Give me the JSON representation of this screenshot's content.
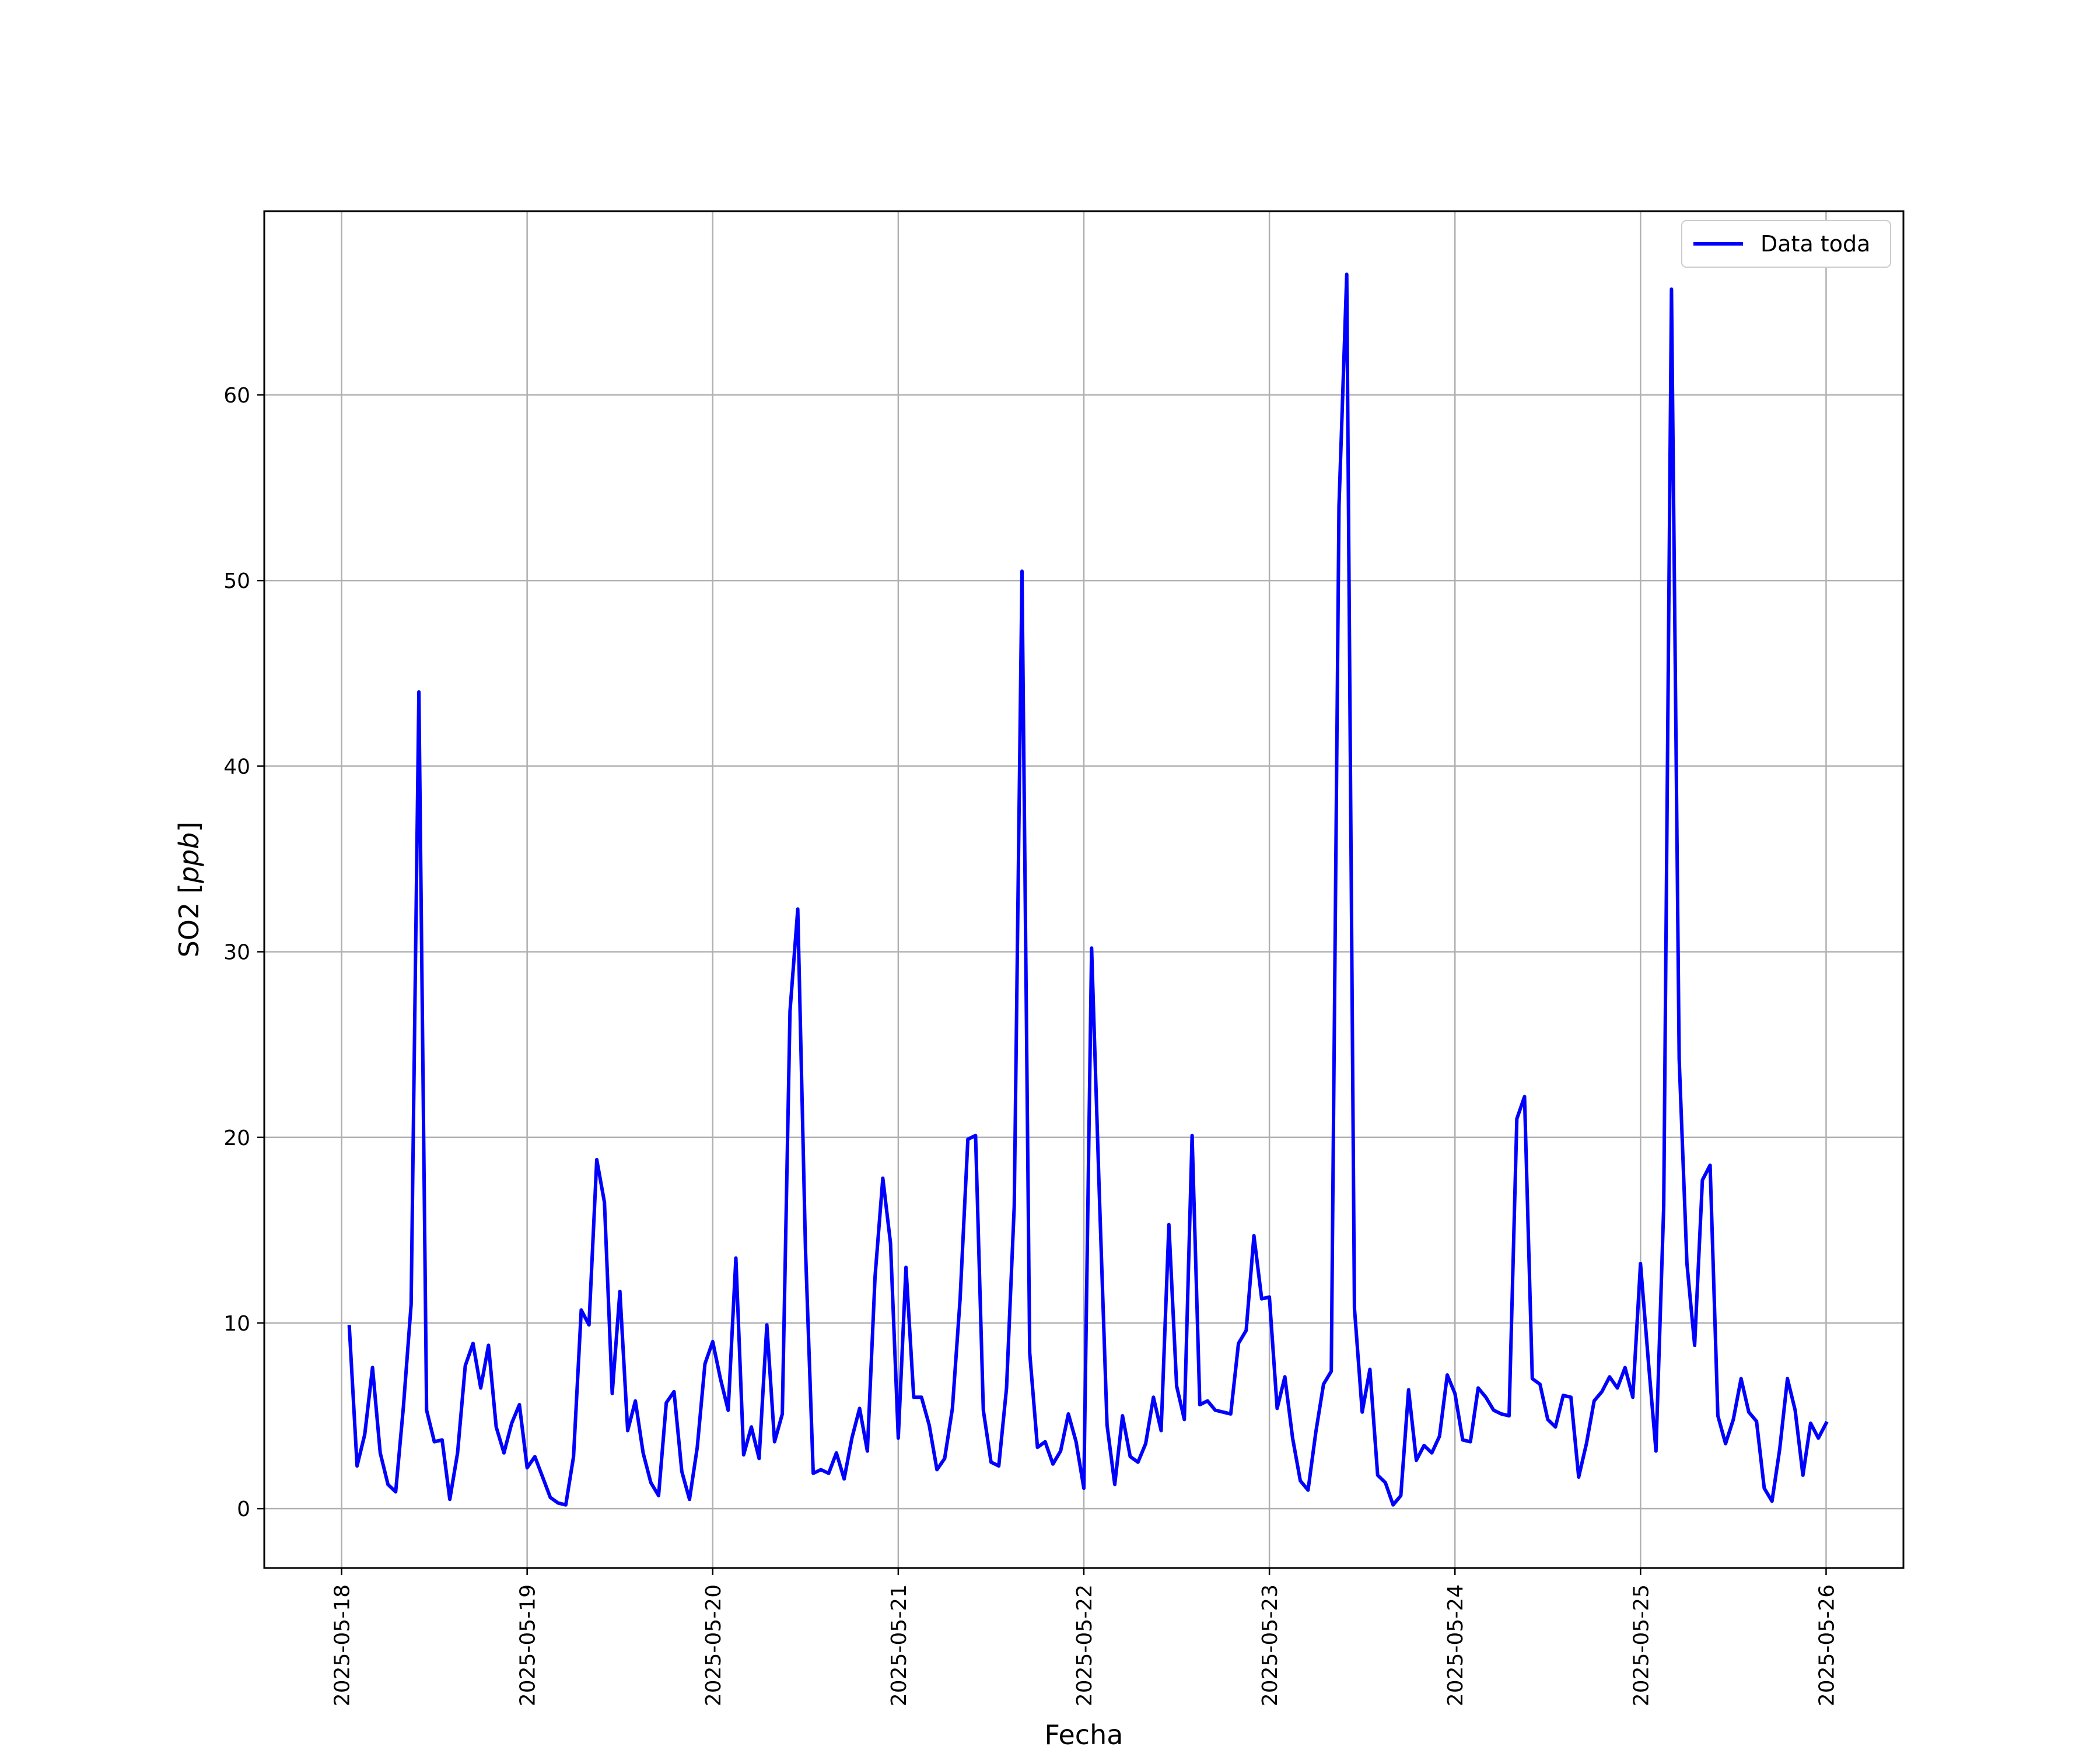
{
  "chart_data": {
    "type": "line",
    "xlabel": "Fecha",
    "ylabel": "SO2 [ppb]",
    "ylabel_parts": {
      "prefix": "SO2 [",
      "unit": "ppb",
      "suffix": "]"
    },
    "x_start": "2025-05-18 01:00",
    "x_step_hours": 1,
    "xlim": [
      "2025-05-17 14:00",
      "2025-05-26 10:00"
    ],
    "ylim": [
      -3.2,
      69.9
    ],
    "x_ticks": [
      "2025-05-18",
      "2025-05-19",
      "2025-05-20",
      "2025-05-21",
      "2025-05-22",
      "2025-05-23",
      "2025-05-24",
      "2025-05-25",
      "2025-05-26"
    ],
    "y_ticks": [
      0,
      10,
      20,
      30,
      40,
      50,
      60
    ],
    "grid": true,
    "legend_position": "top-right",
    "colors": {
      "series": "#0000ff",
      "grid": "#b0b0b0",
      "axes": "#000000"
    },
    "series": [
      {
        "name": "Data toda",
        "values": [
          9.8,
          2.3,
          4.0,
          7.6,
          3.0,
          1.3,
          0.9,
          5.5,
          11.0,
          44.0,
          5.3,
          3.6,
          3.7,
          0.5,
          3.0,
          7.7,
          8.9,
          6.5,
          8.8,
          4.4,
          3.0,
          4.6,
          5.6,
          2.2,
          2.8,
          1.7,
          0.6,
          0.3,
          0.2,
          2.8,
          10.7,
          9.9,
          18.8,
          16.5,
          6.2,
          11.7,
          4.2,
          5.8,
          3.0,
          1.4,
          0.7,
          5.7,
          6.3,
          2.0,
          0.5,
          3.3,
          7.8,
          9.0,
          7.0,
          5.3,
          13.5,
          2.9,
          4.4,
          2.7,
          9.9,
          3.6,
          5.1,
          26.8,
          32.3,
          14.0,
          1.9,
          2.1,
          1.9,
          3.0,
          1.6,
          3.8,
          5.4,
          3.1,
          12.5,
          17.8,
          14.3,
          3.8,
          13.0,
          6.0,
          6.0,
          4.5,
          2.1,
          2.7,
          5.4,
          11.3,
          19.9,
          20.1,
          5.3,
          2.5,
          2.3,
          6.5,
          16.3,
          50.5,
          8.4,
          3.3,
          3.6,
          2.4,
          3.1,
          5.1,
          3.6,
          1.1,
          30.2,
          17.0,
          4.5,
          1.3,
          5.0,
          2.8,
          2.5,
          3.5,
          6.0,
          4.2,
          15.3,
          6.6,
          4.8,
          20.1,
          5.6,
          5.8,
          5.3,
          5.2,
          5.1,
          8.9,
          9.6,
          14.7,
          11.3,
          11.4,
          5.4,
          7.1,
          3.8,
          1.5,
          1.0,
          4.1,
          6.7,
          7.4,
          54.0,
          66.5,
          10.8,
          5.2,
          7.5,
          1.8,
          1.4,
          0.2,
          0.7,
          6.4,
          2.6,
          3.4,
          3.0,
          3.9,
          7.2,
          6.2,
          3.7,
          3.6,
          6.5,
          6.0,
          5.3,
          5.1,
          5.0,
          21.0,
          22.2,
          7.0,
          6.7,
          4.8,
          4.4,
          6.1,
          6.0,
          1.7,
          3.5,
          5.8,
          6.3,
          7.1,
          6.5,
          7.6,
          6.0,
          13.2,
          8.0,
          3.1,
          16.3,
          65.7,
          24.2,
          13.2,
          8.8,
          17.7,
          18.5,
          5.0,
          3.5,
          4.8,
          7.0,
          5.2,
          4.7,
          1.1,
          0.4,
          3.2,
          7.0,
          5.3,
          1.8,
          4.6,
          3.8,
          4.6
        ]
      }
    ]
  }
}
